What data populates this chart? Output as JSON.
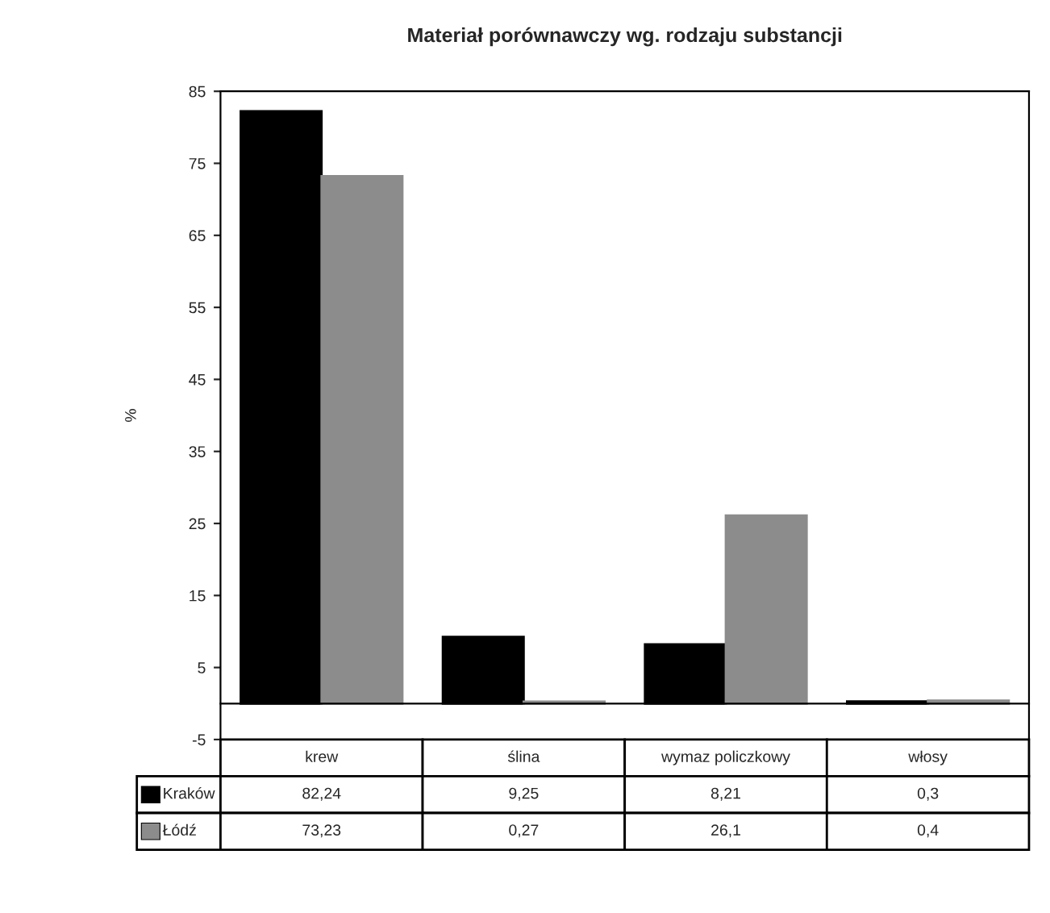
{
  "chart_data": {
    "type": "bar",
    "title": "Materiał porównawczy wg. rodzaju substancji",
    "ylabel": "%",
    "categories": [
      "krew",
      "ślina",
      "wymaz policzkowy",
      "włosy"
    ],
    "series": [
      {
        "name": "Kraków",
        "color": "#000000",
        "values": [
          82.24,
          9.25,
          8.21,
          0.3
        ],
        "value_labels": [
          "82,24",
          "9,25",
          "8,21",
          "0,3"
        ]
      },
      {
        "name": "Łódź",
        "color": "#8c8c8c",
        "values": [
          73.23,
          0.27,
          26.1,
          0.4
        ],
        "value_labels": [
          "73,23",
          "0,27",
          "26,1",
          "0,4"
        ]
      }
    ],
    "ylim": [
      -5,
      85
    ],
    "yticks": [
      -5,
      5,
      15,
      25,
      35,
      45,
      55,
      65,
      75,
      85
    ],
    "grid": false,
    "legend": "bottom left"
  }
}
